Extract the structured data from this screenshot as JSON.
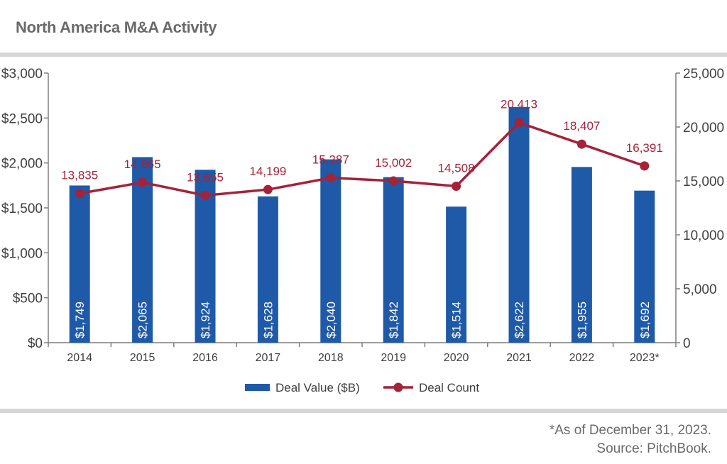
{
  "title": "North America M&A Activity",
  "footnote": "*As of December 31, 2023.",
  "source": "Source: PitchBook.",
  "colors": {
    "bar": "#1f5aa8",
    "line": "#a4223a",
    "axis": "#7f7f7f",
    "text": "#404040",
    "rule": "#d6d6d6"
  },
  "chart_data": {
    "type": "bar",
    "categories": [
      "2014",
      "2015",
      "2016",
      "2017",
      "2018",
      "2019",
      "2020",
      "2021",
      "2022",
      "2023*"
    ],
    "series": [
      {
        "name": "Deal Value ($B)",
        "type": "bar",
        "axis": "left",
        "values": [
          1749,
          2065,
          1924,
          1628,
          2040,
          1842,
          1514,
          2622,
          1955,
          1692
        ],
        "labels": [
          "$1,749",
          "$2,065",
          "$1,924",
          "$1,628",
          "$2,040",
          "$1,842",
          "$1,514",
          "$2,622",
          "$1,955",
          "$1,692"
        ]
      },
      {
        "name": "Deal Count",
        "type": "line",
        "axis": "right",
        "values": [
          13835,
          14865,
          13655,
          14199,
          15287,
          15002,
          14508,
          20413,
          18407,
          16391
        ],
        "labels": [
          "13,835",
          "14,865",
          "13,655",
          "14,199",
          "15,287",
          "15,002",
          "14,508",
          "20,413",
          "18,407",
          "16,391"
        ]
      }
    ],
    "y_left": {
      "min": 0,
      "max": 3000,
      "ticks": [
        0,
        500,
        1000,
        1500,
        2000,
        2500,
        3000
      ],
      "tick_labels": [
        "$0",
        "$500",
        "$1,000",
        "$1,500",
        "$2,000",
        "$2,500",
        "$3,000"
      ]
    },
    "y_right": {
      "min": 0,
      "max": 25000,
      "ticks": [
        0,
        5000,
        10000,
        15000,
        20000,
        25000
      ],
      "tick_labels": [
        "0",
        "5,000",
        "10,000",
        "15,000",
        "20,000",
        "25,000"
      ]
    },
    "legend": {
      "position": "bottom-center",
      "items": [
        "Deal Value ($B)",
        "Deal Count"
      ]
    },
    "grid": false
  }
}
